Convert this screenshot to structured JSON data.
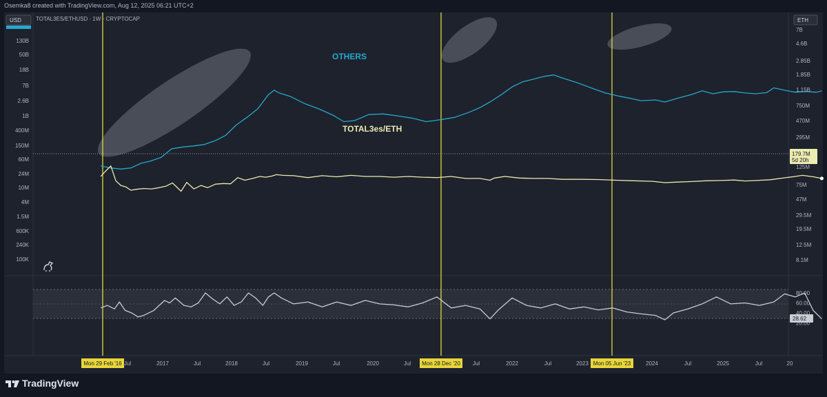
{
  "header": {
    "credit": "Osemka8 created with TradingView.com, Aug 12, 2025 06:21 UTC+2"
  },
  "chart_header": {
    "symbol_line": "TOTAL3ES/ETHUSD · 1W · CRYPTOCAP"
  },
  "left_scale": {
    "currency": "USD"
  },
  "right_scale": {
    "currency": "ETH"
  },
  "footer": {
    "brand": "TradingView"
  },
  "colors": {
    "background": "#1e222d",
    "others_line": "#26a8cc",
    "total3_line": "#ecebb0",
    "rsi_line": "#c9ccd3",
    "vertical_marker": "#e8d63a",
    "ellipse": "#9aa0aa"
  },
  "chart_data": [
    {
      "type": "line",
      "title": "",
      "x_axis_ticks": [
        "Mon 29 Feb '16",
        "Jul",
        "2017",
        "Jul",
        "2018",
        "Jul",
        "2019",
        "Jul",
        "2020",
        "Jul",
        "Mon 28 Dec '20",
        "Jul",
        "2022",
        "Jul",
        "2023",
        "Mon 05 Jun '23",
        "2024",
        "Jul",
        "2025",
        "Jul",
        "20"
      ],
      "left_axis_ticks": [
        "130B",
        "50B",
        "18B",
        "7B",
        "2.6B",
        "1B",
        "400M",
        "150M",
        "60M",
        "24M",
        "10M",
        "4M",
        "1.5M",
        "600K",
        "240K",
        "100K"
      ],
      "right_axis_ticks": [
        "7B",
        "4.6B",
        "2.85B",
        "1.85B",
        "1.15B",
        "750M",
        "470M",
        "295M",
        "125M",
        "75M",
        "47M",
        "29.5M",
        "19.5M",
        "12.5M",
        "8.1M"
      ],
      "right_scale": "log",
      "vertical_markers": [
        "Mon 29 Feb '16",
        "Mon 28 Dec '20",
        "Mon 05 Jun '23"
      ],
      "series": [
        {
          "name": "OTHERS",
          "x": [
            2015.56,
            2015.7,
            2015.84,
            2015.98,
            2016.12,
            2016.25,
            2016.4,
            2016.55,
            2016.7,
            2016.85,
            2017.0,
            2017.15,
            2017.3,
            2017.45,
            2017.6,
            2017.75,
            2017.9,
            2017.98,
            2018.05,
            2018.2,
            2018.4,
            2018.6,
            2018.8,
            2018.95,
            2019.1,
            2019.3,
            2019.5,
            2019.7,
            2019.9,
            2020.1,
            2020.3,
            2020.5,
            2020.7,
            2020.85,
            2020.99,
            2021.15,
            2021.3,
            2021.45,
            2021.6,
            2021.75,
            2021.88,
            2022.0,
            2022.2,
            2022.4,
            2022.6,
            2022.8,
            2022.95,
            2023.1,
            2023.3,
            2023.43,
            2023.6,
            2023.8,
            2023.95,
            2024.1,
            2024.25,
            2024.4,
            2024.55,
            2024.7,
            2024.85,
            2024.95,
            2025.1,
            2025.25,
            2025.4,
            2025.55,
            2025.62
          ],
          "values": [
            80000000,
            70000000,
            65000000,
            70000000,
            95000000,
            110000000,
            140000000,
            250000000,
            280000000,
            300000000,
            330000000,
            420000000,
            600000000,
            1200000000,
            2000000000,
            3500000000,
            9000000000,
            12000000000,
            10000000000,
            8000000000,
            5000000000,
            3500000000,
            2300000000,
            1500000000,
            1600000000,
            2400000000,
            2500000000,
            2200000000,
            1900000000,
            1500000000,
            1700000000,
            2000000000,
            2800000000,
            3800000000,
            5500000000,
            9000000000,
            15000000000,
            21000000000,
            25000000000,
            30000000000,
            33000000000,
            27000000000,
            20000000000,
            14000000000,
            10000000000,
            8000000000,
            7000000000,
            6000000000,
            6300000000,
            5500000000,
            7000000000,
            9000000000,
            11500000000,
            9500000000,
            10800000000,
            11000000000,
            10000000000,
            9500000000,
            10200000000,
            14000000000,
            12000000000,
            10500000000,
            11000000000,
            10500000000,
            11500000000
          ]
        },
        {
          "name": "TOTAL3es/ETH",
          "x": [
            2015.56,
            2015.62,
            2015.7,
            2015.77,
            2015.84,
            2015.91,
            2015.98,
            2016.05,
            2016.16,
            2016.27,
            2016.37,
            2016.47,
            2016.56,
            2016.68,
            2016.76,
            2016.86,
            2016.96,
            2017.05,
            2017.16,
            2017.27,
            2017.37,
            2017.47,
            2017.57,
            2017.68,
            2017.78,
            2017.86,
            2017.95,
            2018.01,
            2018.1,
            2018.25,
            2018.45,
            2018.65,
            2018.85,
            2019.05,
            2019.25,
            2019.45,
            2019.65,
            2019.85,
            2020.05,
            2020.25,
            2020.45,
            2020.65,
            2020.85,
            2020.99,
            2021.05,
            2021.2,
            2021.4,
            2021.6,
            2021.8,
            2022.0,
            2022.25,
            2022.5,
            2022.75,
            2023.0,
            2023.25,
            2023.43,
            2023.6,
            2023.8,
            2024.0,
            2024.2,
            2024.4,
            2024.55,
            2024.7,
            2024.9,
            2025.1,
            2025.25,
            2025.35,
            2025.5,
            2025.62
          ],
          "values": [
            40000000,
            55000000,
            80000000,
            30000000,
            22000000,
            20000000,
            16000000,
            17000000,
            18000000,
            17500000,
            19000000,
            21000000,
            26000000,
            15000000,
            27000000,
            17500000,
            22000000,
            19000000,
            24000000,
            25000000,
            24500000,
            37000000,
            31000000,
            35000000,
            40000000,
            38000000,
            41000000,
            45000000,
            43000000,
            42000000,
            37000000,
            42000000,
            39000000,
            43000000,
            40000000,
            40000000,
            38000000,
            40000000,
            38000000,
            37000000,
            40000000,
            35000000,
            35000000,
            31000000,
            36000000,
            40000000,
            36000000,
            35000000,
            35000000,
            33000000,
            33000000,
            32500000,
            31000000,
            30000000,
            29000000,
            26500000,
            27500000,
            28500000,
            30000000,
            30500000,
            31500000,
            29500000,
            30500000,
            32000000,
            36500000,
            40000000,
            43000000,
            39000000,
            35000000
          ],
          "last_value_label": "179.7M",
          "countdown_label": "5d 20h"
        },
        {
          "name": "",
          "panel": "oscillator",
          "axis_ticks": [
            "80.00",
            "60.00",
            "40.00",
            "20.00"
          ],
          "bands": [
            30,
            70
          ],
          "x": [
            2015.56,
            2015.65,
            2015.75,
            2015.82,
            2015.9,
            2015.99,
            2016.08,
            2016.16,
            2016.3,
            2016.45,
            2016.52,
            2016.6,
            2016.72,
            2016.82,
            2016.92,
            2017.02,
            2017.12,
            2017.22,
            2017.32,
            2017.42,
            2017.52,
            2017.62,
            2017.72,
            2017.82,
            2017.9,
            2017.98,
            2018.08,
            2018.25,
            2018.45,
            2018.65,
            2018.85,
            2019.05,
            2019.25,
            2019.45,
            2019.65,
            2019.85,
            2020.05,
            2020.25,
            2020.45,
            2020.65,
            2020.85,
            2020.99,
            2021.1,
            2021.3,
            2021.5,
            2021.7,
            2021.9,
            2022.1,
            2022.3,
            2022.5,
            2022.7,
            2022.9,
            2023.1,
            2023.3,
            2023.43,
            2023.55,
            2023.75,
            2023.95,
            2024.15,
            2024.35,
            2024.55,
            2024.75,
            2024.95,
            2025.1,
            2025.25,
            2025.38,
            2025.5,
            2025.62
          ],
          "values": [
            50,
            55,
            48,
            62,
            45,
            40,
            32,
            35,
            45,
            65,
            60,
            70,
            55,
            52,
            60,
            80,
            68,
            58,
            72,
            55,
            62,
            80,
            70,
            55,
            72,
            80,
            70,
            58,
            62,
            52,
            62,
            55,
            65,
            58,
            56,
            52,
            60,
            72,
            50,
            55,
            48,
            28,
            45,
            70,
            55,
            50,
            58,
            48,
            52,
            46,
            50,
            42,
            38,
            35,
            26,
            40,
            48,
            58,
            72,
            58,
            60,
            55,
            62,
            78,
            72,
            80,
            45,
            28
          ],
          "last_value_label": "28.62"
        }
      ]
    }
  ]
}
